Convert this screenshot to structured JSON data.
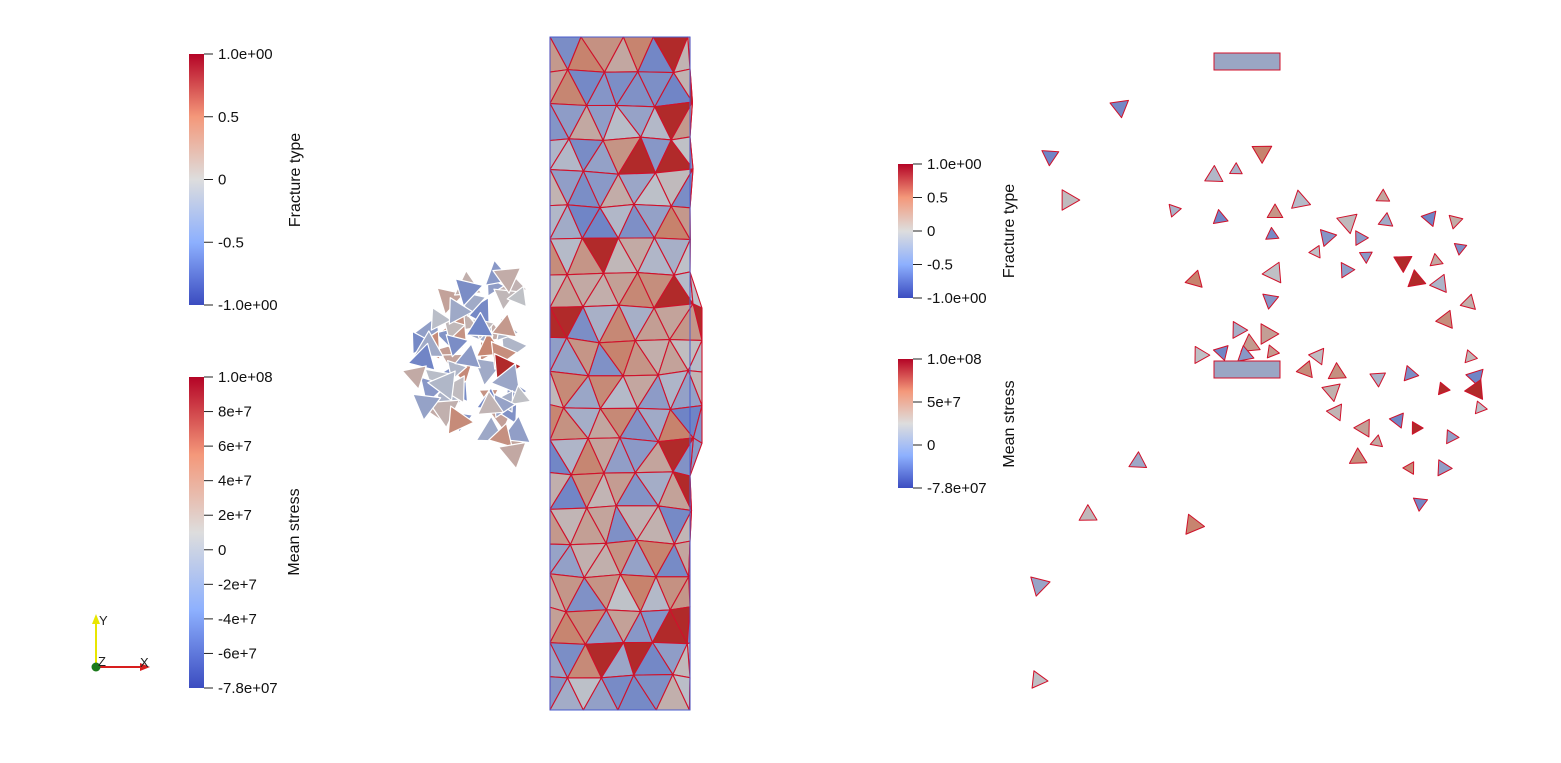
{
  "colormap": {
    "low": "#3b4cc0",
    "mid": "#dddddd",
    "high": "#b40426"
  },
  "mesh_colors": {
    "edge": "#d0112b",
    "outline": "#3b4cc0",
    "neutral": "#a9b3c8"
  },
  "scalar_bars": [
    {
      "title": "Fracture type",
      "ticks": [
        "1.0e+00",
        "0.5",
        "0",
        "-0.5",
        "-1.0e+00"
      ]
    },
    {
      "title": "Mean stress",
      "ticks": [
        "1.0e+08",
        "8e+7",
        "6e+7",
        "4e+7",
        "2e+7",
        "0",
        "-2e+7",
        "-4e+7",
        "-6e+7",
        "-7.8e+07"
      ]
    },
    {
      "title": "Fracture type",
      "ticks": [
        "1.0e+00",
        "0.5",
        "0",
        "-0.5",
        "-1.0e+00"
      ]
    },
    {
      "title": "Mean stress",
      "ticks": [
        "1.0e+08",
        "5e+7",
        "0",
        "-7.8e+07"
      ]
    }
  ],
  "axes_triad": {
    "y_label": "Y",
    "z_label": "Z",
    "x_label": "X",
    "y_color": "#e8e600",
    "x_color": "#d81e1e",
    "z_color": "#1b7a1b"
  }
}
